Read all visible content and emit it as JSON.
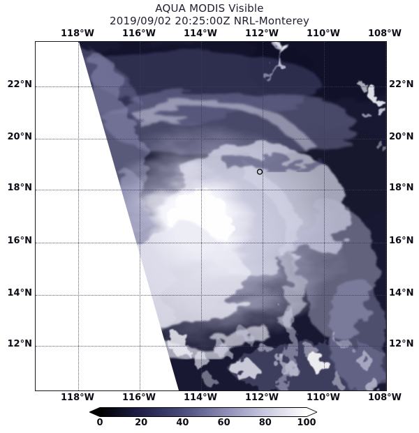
{
  "title": {
    "line1": "AQUA MODIS Visible",
    "line2": "2019/09/02 20:25:00Z NRL-Monterey"
  },
  "axes": {
    "lon_ticks": [
      {
        "label": "118°W",
        "pos": 0.1215
      },
      {
        "label": "116°W",
        "pos": 0.2968
      },
      {
        "label": "114°W",
        "pos": 0.4721
      },
      {
        "label": "112°W",
        "pos": 0.6474
      },
      {
        "label": "110°W",
        "pos": 0.8227
      },
      {
        "label": "108°W",
        "pos": 0.998
      }
    ],
    "lat_ticks": [
      {
        "label": "22°N",
        "pos": 0.128
      },
      {
        "label": "20°N",
        "pos": 0.278
      },
      {
        "label": "18°N",
        "pos": 0.424
      },
      {
        "label": "16°N",
        "pos": 0.576
      },
      {
        "label": "14°N",
        "pos": 0.726
      },
      {
        "label": "12°N",
        "pos": 0.872
      }
    ]
  },
  "colorbar": {
    "min": 0,
    "max": 100,
    "ticks": [
      "0",
      "20",
      "40",
      "60",
      "80",
      "100"
    ],
    "colors": [
      "#000000",
      "#20204a",
      "#4b4b7c",
      "#8a8ab4",
      "#c9c9e0",
      "#ffffff"
    ]
  },
  "map": {
    "ocean_color": "#181832",
    "cloud_color": "#ffffff",
    "grid_color": "#3a3a58",
    "features": [
      "hurricane-cloud-mass",
      "no-data-wedge",
      "island-outline-marker"
    ]
  }
}
